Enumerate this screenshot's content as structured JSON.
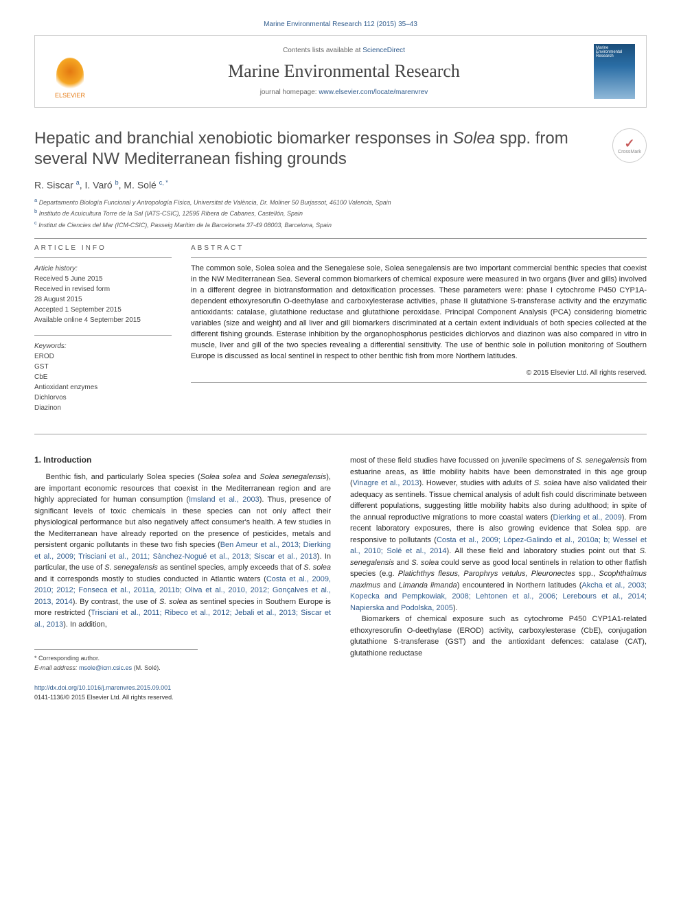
{
  "header": {
    "citation": "Marine Environmental Research 112 (2015) 35–43",
    "contents_text": "Contents lists available at ",
    "contents_link": "ScienceDirect",
    "journal_name": "Marine Environmental Research",
    "homepage_text": "journal homepage: ",
    "homepage_link": "www.elsevier.com/locate/marenvrev",
    "publisher": "ELSEVIER",
    "cover_text": "Marine Environmental Research"
  },
  "article": {
    "title_part1": "Hepatic and branchial xenobiotic biomarker responses in ",
    "title_italic": "Solea",
    "title_part2": " spp. from several NW Mediterranean fishing grounds",
    "crossmark": "CrossMark",
    "authors_html": "R. Siscar <sup>a</sup>, I. Varó <sup>b</sup>, M. Solé <sup>c, *</sup>",
    "affiliations": [
      {
        "sup": "a",
        "text": "Departamento Biología Funcional y Antropología Física, Universitat de València, Dr. Moliner 50 Burjassot, 46100 Valencia, Spain"
      },
      {
        "sup": "b",
        "text": "Instituto de Acuicultura Torre de la Sal (IATS-CSIC), 12595 Ribera de Cabanes, Castellón, Spain"
      },
      {
        "sup": "c",
        "text": "Institut de Ciencies del Mar (ICM-CSIC), Passeig Marítim de la Barceloneta 37-49 08003, Barcelona, Spain"
      }
    ]
  },
  "info": {
    "label": "article info",
    "history_header": "Article history:",
    "history": [
      "Received 5 June 2015",
      "Received in revised form",
      "28 August 2015",
      "Accepted 1 September 2015",
      "Available online 4 September 2015"
    ],
    "keywords_header": "Keywords:",
    "keywords": [
      "EROD",
      "GST",
      "CbE",
      "Antioxidant enzymes",
      "Dichlorvos",
      "Diazinon"
    ]
  },
  "abstract": {
    "label": "abstract",
    "text": "The common sole, Solea solea and the Senegalese sole, Solea senegalensis are two important commercial benthic species that coexist in the NW Mediterranean Sea. Several common biomarkers of chemical exposure were measured in two organs (liver and gills) involved in a different degree in biotransformation and detoxification processes. These parameters were: phase I cytochrome P450 CYP1A-dependent ethoxyresorufin O-deethylase and carboxylesterase activities, phase II glutathione S-transferase activity and the enzymatic antioxidants: catalase, glutathione reductase and glutathione peroxidase. Principal Component Analysis (PCA) considering biometric variables (size and weight) and all liver and gill biomarkers discriminated at a certain extent individuals of both species collected at the different fishing grounds. Esterase inhibition by the organophosphorus pesticides dichlorvos and diazinon was also compared in vitro in muscle, liver and gill of the two species revealing a differential sensitivity. The use of benthic sole in pollution monitoring of Southern Europe is discussed as local sentinel in respect to other benthic fish from more Northern latitudes.",
    "copyright": "© 2015 Elsevier Ltd. All rights reserved."
  },
  "body": {
    "heading": "1. Introduction",
    "col1_html": "Benthic fish, and particularly Solea species (<span class=\"italic\">Solea solea</span> and <span class=\"italic\">Solea senegalensis</span>), are important economic resources that coexist in the Mediterranean region and are highly appreciated for human consumption (<span class=\"cite\">Imsland et al., 2003</span>). Thus, presence of significant levels of toxic chemicals in these species can not only affect their physiological performance but also negatively affect consumer's health. A few studies in the Mediterranean have already reported on the presence of pesticides, metals and persistent organic pollutants in these two fish species (<span class=\"cite\">Ben Ameur et al., 2013; Dierking et al., 2009; Trisciani et al., 2011; Sànchez-Nogué et al., 2013; Siscar et al., 2013</span>). In particular, the use of <span class=\"italic\">S. senegalensis</span> as sentinel species, amply exceeds that of <span class=\"italic\">S. solea</span> and it corresponds mostly to studies conducted in Atlantic waters (<span class=\"cite\">Costa et al., 2009, 2010; 2012; Fonseca et al., 2011a, 2011b; Oliva et al., 2010, 2012; Gonçalves et al., 2013, 2014</span>). By contrast, the use of <span class=\"italic\">S. solea</span> as sentinel species in Southern Europe is more restricted (<span class=\"cite\">Trisciani et al., 2011; Ribeco et al., 2012; Jebali et al., 2013; Siscar et al., 2013</span>). In addition,",
    "col2_p1_html": "most of these field studies have focussed on juvenile specimens of <span class=\"italic\">S. senegalensis</span> from estuarine areas, as little mobility habits have been demonstrated in this age group (<span class=\"cite\">Vinagre et al., 2013</span>). However, studies with adults of <span class=\"italic\">S. solea</span> have also validated their adequacy as sentinels. Tissue chemical analysis of adult fish could discriminate between different populations, suggesting little mobility habits also during adulthood; in spite of the annual reproductive migrations to more coastal waters (<span class=\"cite\">Dierking et al., 2009</span>). From recent laboratory exposures, there is also growing evidence that Solea spp. are responsive to pollutants (<span class=\"cite\">Costa et al., 2009; López-Galindo et al., 2010a; b; Wessel et al., 2010; Solé et al., 2014</span>). All these field and laboratory studies point out that <span class=\"italic\">S. senegalensis</span> and <span class=\"italic\">S. solea</span> could serve as good local sentinels in relation to other flatfish species (e.g. <span class=\"italic\">Platichthys flesus, Parophrys vetulus, Pleuronectes</span> spp., <span class=\"italic\">Scophthalmus maximus</span> and <span class=\"italic\">Limanda limanda</span>) encountered in Northern latitudes (<span class=\"cite\">Akcha et al., 2003; Kopecka and Pempkowiak, 2008; Lehtonen et al., 2006; Lerebours et al., 2014; Napierska and Podolska, 2005</span>).",
    "col2_p2_html": "Biomarkers of chemical exposure such as cytochrome P450 CYP1A1-related ethoxyresorufin O-deethylase (EROD) activity, carboxylesterase (CbE), conjugation glutathione S-transferase (GST) and the antioxidant defences: catalase (CAT), glutathione reductase"
  },
  "footnote": {
    "corr": "* Corresponding author.",
    "email_label": "E-mail address: ",
    "email": "msole@icm.csic.es",
    "email_tail": " (M. Solé)."
  },
  "bottom": {
    "doi": "http://dx.doi.org/10.1016/j.marenvres.2015.09.001",
    "issn_line": "0141-1136/© 2015 Elsevier Ltd. All rights reserved."
  },
  "colors": {
    "link": "#2e5a8c",
    "accent": "#e47911",
    "text": "#2a2a2a",
    "muted": "#666666",
    "border": "#cccccc"
  }
}
